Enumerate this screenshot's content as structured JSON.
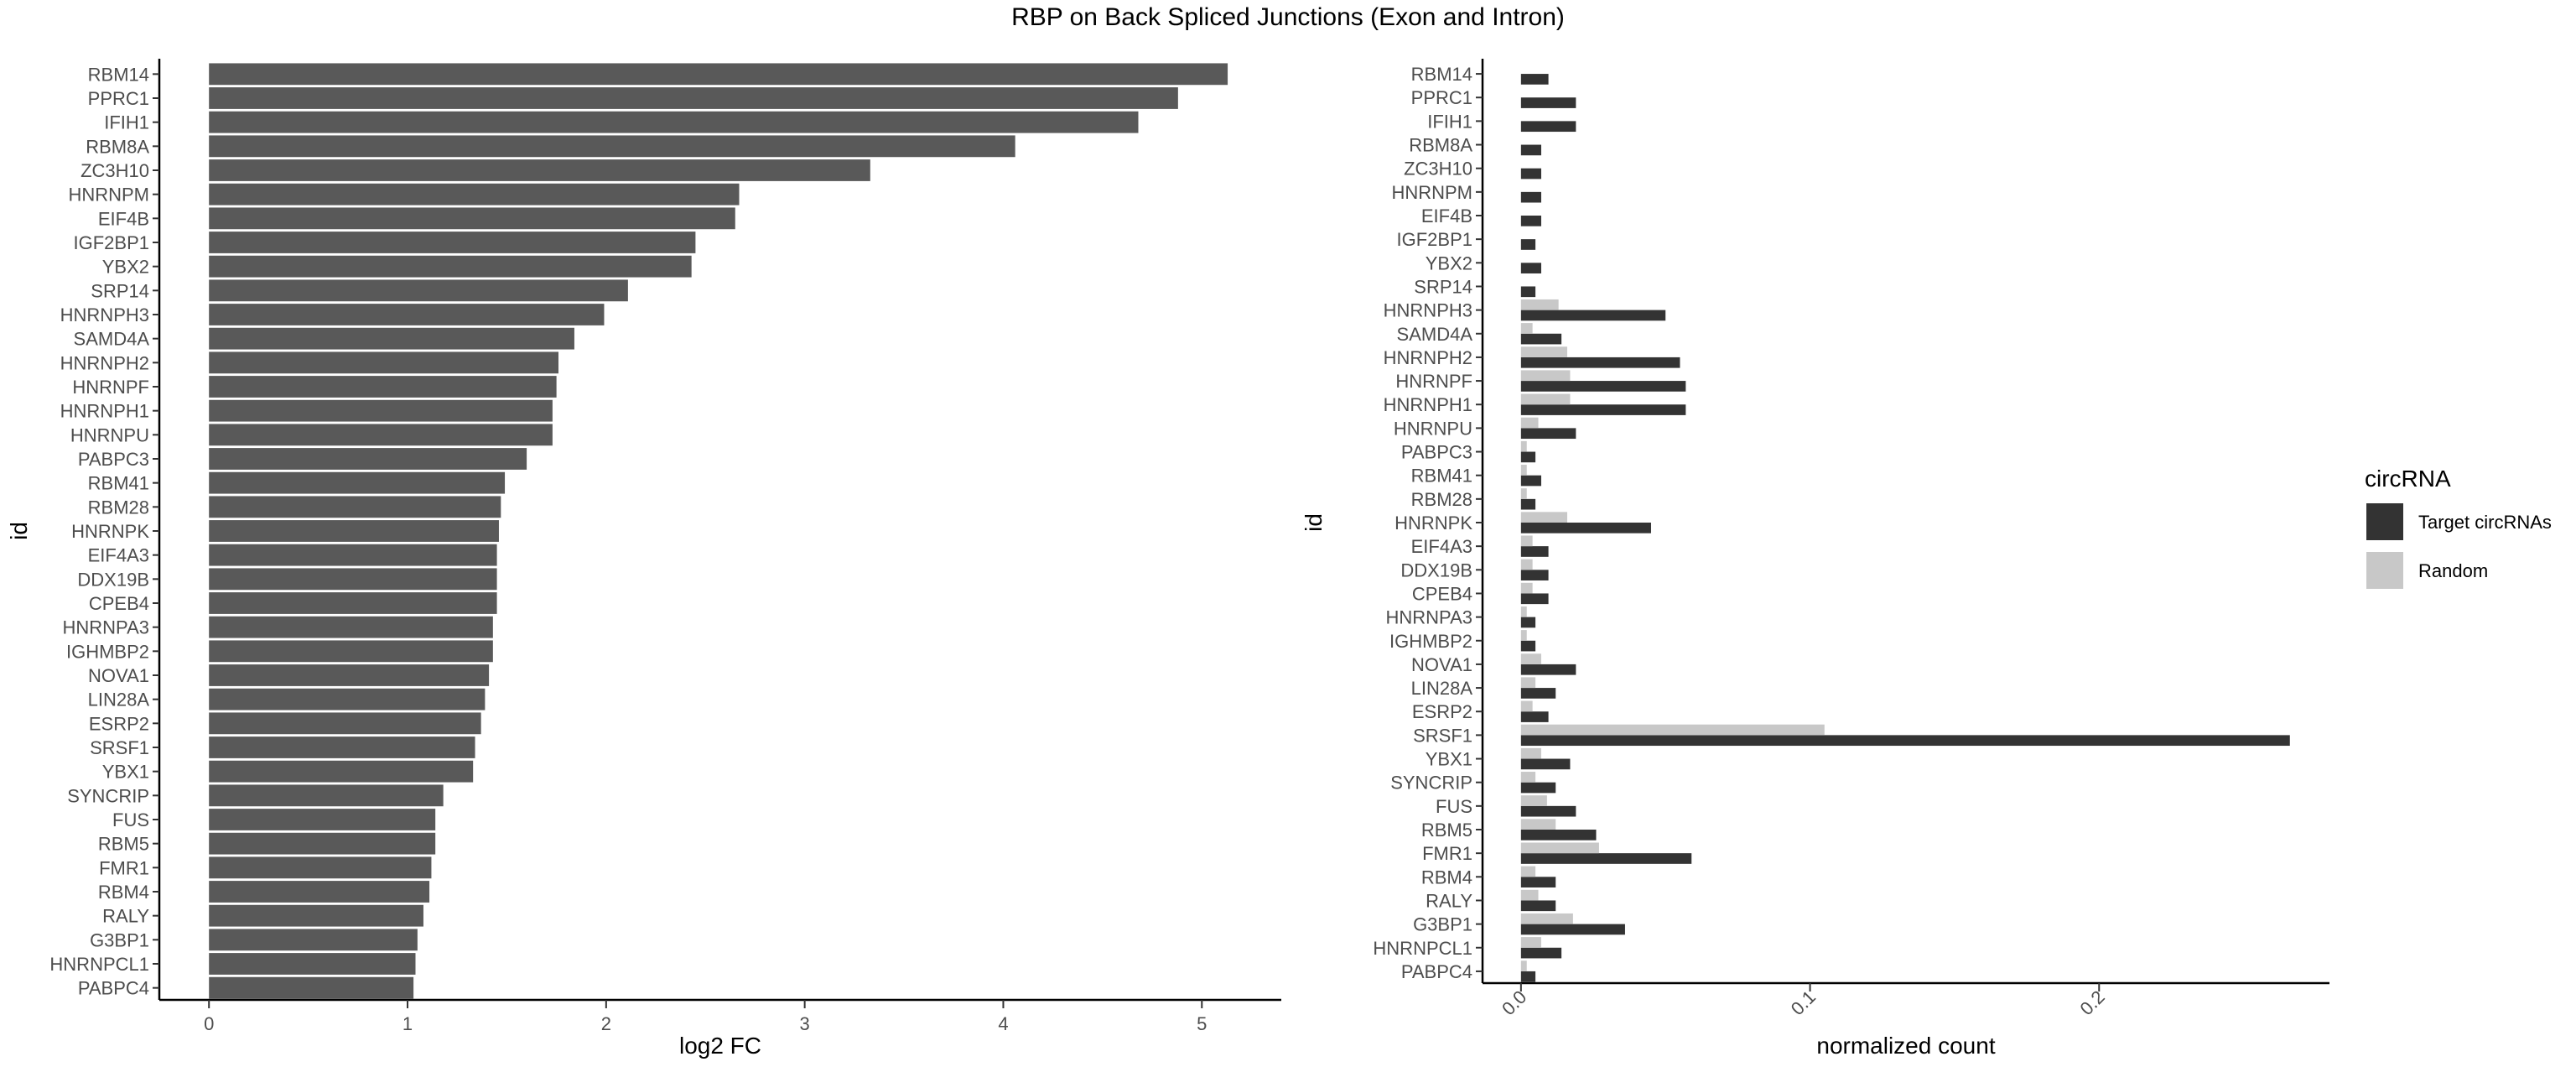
{
  "title": "RBP on Back Spliced Junctions (Exon and Intron)",
  "chart_data": [
    {
      "type": "bar",
      "orientation": "horizontal",
      "categories": [
        "RBM14",
        "PPRC1",
        "IFIH1",
        "RBM8A",
        "ZC3H10",
        "HNRNPM",
        "EIF4B",
        "IGF2BP1",
        "YBX2",
        "SRP14",
        "HNRNPH3",
        "SAMD4A",
        "HNRNPH2",
        "HNRNPF",
        "HNRNPH1",
        "HNRNPU",
        "PABPC3",
        "RBM41",
        "RBM28",
        "HNRNPK",
        "EIF4A3",
        "DDX19B",
        "CPEB4",
        "HNRNPA3",
        "IGHMBP2",
        "NOVA1",
        "LIN28A",
        "ESRP2",
        "SRSF1",
        "YBX1",
        "SYNCRIP",
        "FUS",
        "RBM5",
        "FMR1",
        "RBM4",
        "RALY",
        "G3BP1",
        "HNRNPCL1",
        "PABPC4"
      ],
      "values": [
        5.13,
        4.88,
        4.68,
        4.06,
        3.33,
        2.67,
        2.65,
        2.45,
        2.43,
        2.11,
        1.99,
        1.84,
        1.76,
        1.75,
        1.73,
        1.73,
        1.6,
        1.49,
        1.47,
        1.46,
        1.45,
        1.45,
        1.45,
        1.43,
        1.43,
        1.41,
        1.39,
        1.37,
        1.34,
        1.33,
        1.18,
        1.14,
        1.14,
        1.12,
        1.11,
        1.08,
        1.05,
        1.04,
        1.03
      ],
      "xlabel": "log2 FC",
      "ylabel": "id",
      "xlim": [
        -0.25,
        5.4
      ],
      "xticks": [
        "0",
        "1",
        "2",
        "3",
        "4",
        "5"
      ],
      "bar_color": "#595959",
      "grid": false
    },
    {
      "type": "bar",
      "orientation": "horizontal",
      "categories": [
        "RBM14",
        "PPRC1",
        "IFIH1",
        "RBM8A",
        "ZC3H10",
        "HNRNPM",
        "EIF4B",
        "IGF2BP1",
        "YBX2",
        "SRP14",
        "HNRNPH3",
        "SAMD4A",
        "HNRNPH2",
        "HNRNPF",
        "HNRNPH1",
        "HNRNPU",
        "PABPC3",
        "RBM41",
        "RBM28",
        "HNRNPK",
        "EIF4A3",
        "DDX19B",
        "CPEB4",
        "HNRNPA3",
        "IGHMBP2",
        "NOVA1",
        "LIN28A",
        "ESRP2",
        "SRSF1",
        "YBX1",
        "SYNCRIP",
        "FUS",
        "RBM5",
        "FMR1",
        "RBM4",
        "RALY",
        "G3BP1",
        "HNRNPCL1",
        "PABPC4"
      ],
      "series": [
        {
          "name": "Target circRNAs",
          "color": "#333333",
          "values": [
            0.0095,
            0.019,
            0.019,
            0.007,
            0.007,
            0.007,
            0.007,
            0.005,
            0.007,
            0.005,
            0.05,
            0.014,
            0.055,
            0.057,
            0.057,
            0.019,
            0.005,
            0.007,
            0.005,
            0.045,
            0.0095,
            0.0095,
            0.0095,
            0.005,
            0.005,
            0.019,
            0.012,
            0.0095,
            0.266,
            0.017,
            0.012,
            0.019,
            0.026,
            0.059,
            0.012,
            0.012,
            0.036,
            0.014,
            0.005
          ]
        },
        {
          "name": "Random",
          "color": "#c8c8c8",
          "values": [
            0,
            0,
            0,
            0,
            0,
            0,
            0,
            0,
            0,
            0,
            0.013,
            0.004,
            0.016,
            0.017,
            0.017,
            0.006,
            0.002,
            0.002,
            0.002,
            0.016,
            0.004,
            0.004,
            0.004,
            0.002,
            0.002,
            0.007,
            0.005,
            0.004,
            0.105,
            0.007,
            0.005,
            0.009,
            0.012,
            0.027,
            0.005,
            0.006,
            0.018,
            0.007,
            0.002
          ]
        }
      ],
      "xlabel": "normalized count",
      "ylabel": "id",
      "xlim": [
        -0.0133,
        0.2797
      ],
      "xticks": [
        "0.0",
        "0.1",
        "0.2"
      ],
      "legend": {
        "title": "circRNA",
        "position": "right"
      },
      "grid": false
    }
  ]
}
